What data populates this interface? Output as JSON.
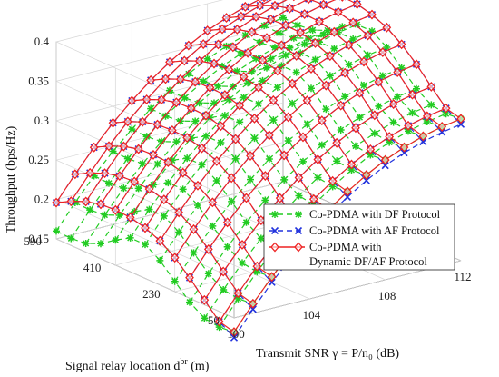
{
  "chart_data": {
    "type": "surface-3d",
    "title": "",
    "xlabel": "Transmit SNR γ = P/n₀ (dB)",
    "ylabel": "Signal relay location d^{br} (m)",
    "zlabel": "Throughput (bps/Hz)",
    "xticks": [
      "100",
      "104",
      "108",
      "112"
    ],
    "yticks": [
      "50",
      "230",
      "410",
      "590"
    ],
    "zticks": [
      "0.15",
      "0.2",
      "0.25",
      "0.3",
      "0.35",
      "0.4"
    ],
    "xlim": [
      100,
      112
    ],
    "ylim": [
      50,
      590
    ],
    "zlim": [
      0.15,
      0.4
    ],
    "grid": true,
    "legend_position": "inside-bottom-right",
    "x": [
      100,
      101,
      102,
      103,
      104,
      105,
      106,
      107,
      108,
      109,
      110,
      111,
      112
    ],
    "y": [
      590,
      545,
      500,
      455,
      410,
      365,
      320,
      275,
      230,
      185,
      140,
      95,
      50
    ],
    "series": [
      {
        "name": "Co-PDMA with DF Protocol",
        "color": "#22cc22",
        "line": "dashed",
        "marker": "asterisk",
        "values": [
          [
            0.16,
            0.19,
            0.218,
            0.243,
            0.265,
            0.285,
            0.302,
            0.317,
            0.33,
            0.34,
            0.348,
            0.354,
            0.358
          ],
          [
            0.159,
            0.189,
            0.217,
            0.242,
            0.264,
            0.284,
            0.301,
            0.316,
            0.329,
            0.339,
            0.347,
            0.353,
            0.357
          ],
          [
            0.161,
            0.191,
            0.219,
            0.244,
            0.266,
            0.286,
            0.303,
            0.318,
            0.331,
            0.341,
            0.349,
            0.355,
            0.359
          ],
          [
            0.169,
            0.199,
            0.227,
            0.252,
            0.274,
            0.294,
            0.311,
            0.326,
            0.339,
            0.349,
            0.357,
            0.363,
            0.367
          ],
          [
            0.182,
            0.212,
            0.24,
            0.265,
            0.287,
            0.307,
            0.324,
            0.339,
            0.352,
            0.362,
            0.37,
            0.376,
            0.38
          ],
          [
            0.193,
            0.223,
            0.251,
            0.276,
            0.298,
            0.318,
            0.335,
            0.35,
            0.363,
            0.373,
            0.381,
            0.387,
            0.391
          ],
          [
            0.193,
            0.223,
            0.251,
            0.276,
            0.298,
            0.318,
            0.335,
            0.35,
            0.363,
            0.373,
            0.381,
            0.387,
            0.391
          ],
          [
            0.181,
            0.211,
            0.239,
            0.264,
            0.286,
            0.306,
            0.323,
            0.338,
            0.351,
            0.361,
            0.369,
            0.375,
            0.379
          ],
          [
            0.163,
            0.193,
            0.221,
            0.246,
            0.268,
            0.288,
            0.305,
            0.32,
            0.333,
            0.343,
            0.351,
            0.357,
            0.361
          ],
          [
            0.145,
            0.175,
            0.203,
            0.228,
            0.25,
            0.27,
            0.287,
            0.302,
            0.315,
            0.325,
            0.333,
            0.339,
            0.343
          ],
          [
            0.133,
            0.163,
            0.191,
            0.216,
            0.238,
            0.258,
            0.275,
            0.29,
            0.303,
            0.313,
            0.321,
            0.327,
            0.331
          ],
          [
            0.13,
            0.16,
            0.188,
            0.213,
            0.235,
            0.255,
            0.272,
            0.287,
            0.3,
            0.31,
            0.318,
            0.324,
            0.328
          ],
          [
            0.132,
            0.162,
            0.19,
            0.215,
            0.237,
            0.257,
            0.274,
            0.289,
            0.302,
            0.312,
            0.32,
            0.326,
            0.33
          ]
        ]
      },
      {
        "name": "Co-PDMA with AF Protocol",
        "color": "#2233dd",
        "line": "dashed",
        "marker": "x",
        "values": [
          [
            0.196,
            0.226,
            0.254,
            0.279,
            0.301,
            0.321,
            0.338,
            0.353,
            0.366,
            0.376,
            0.384,
            0.39,
            0.394
          ],
          [
            0.206,
            0.236,
            0.264,
            0.289,
            0.311,
            0.331,
            0.348,
            0.363,
            0.376,
            0.386,
            0.394,
            0.4,
            0.404
          ],
          [
            0.214,
            0.244,
            0.272,
            0.297,
            0.319,
            0.339,
            0.356,
            0.371,
            0.384,
            0.394,
            0.402,
            0.408,
            0.412
          ],
          [
            0.219,
            0.249,
            0.277,
            0.302,
            0.324,
            0.344,
            0.361,
            0.376,
            0.389,
            0.399,
            0.407,
            0.413,
            0.417
          ],
          [
            0.22,
            0.25,
            0.278,
            0.303,
            0.325,
            0.345,
            0.362,
            0.377,
            0.39,
            0.4,
            0.408,
            0.414,
            0.418
          ],
          [
            0.219,
            0.249,
            0.277,
            0.302,
            0.324,
            0.344,
            0.361,
            0.376,
            0.389,
            0.399,
            0.407,
            0.413,
            0.417
          ],
          [
            0.214,
            0.244,
            0.272,
            0.297,
            0.319,
            0.339,
            0.356,
            0.371,
            0.384,
            0.394,
            0.402,
            0.408,
            0.412
          ],
          [
            0.206,
            0.236,
            0.264,
            0.289,
            0.311,
            0.331,
            0.348,
            0.363,
            0.376,
            0.386,
            0.394,
            0.4,
            0.404
          ],
          [
            0.193,
            0.223,
            0.251,
            0.276,
            0.298,
            0.318,
            0.335,
            0.35,
            0.363,
            0.373,
            0.381,
            0.387,
            0.391
          ],
          [
            0.176,
            0.206,
            0.234,
            0.259,
            0.281,
            0.301,
            0.318,
            0.333,
            0.346,
            0.356,
            0.364,
            0.37,
            0.374
          ],
          [
            0.156,
            0.186,
            0.214,
            0.239,
            0.261,
            0.281,
            0.298,
            0.313,
            0.326,
            0.336,
            0.344,
            0.35,
            0.354
          ],
          [
            0.137,
            0.167,
            0.195,
            0.22,
            0.242,
            0.262,
            0.279,
            0.294,
            0.307,
            0.317,
            0.325,
            0.331,
            0.335
          ],
          [
            0.125,
            0.155,
            0.183,
            0.208,
            0.23,
            0.25,
            0.267,
            0.282,
            0.295,
            0.305,
            0.313,
            0.319,
            0.323
          ]
        ]
      },
      {
        "name": "Co-PDMA with Dynamic DF/AF Protocol",
        "name_lines": [
          "Co-PDMA with",
          "Dynamic DF/AF Protocol"
        ],
        "color": "#ee2222",
        "line": "solid",
        "marker": "diamond",
        "values": [
          [
            0.196,
            0.226,
            0.254,
            0.279,
            0.301,
            0.321,
            0.338,
            0.353,
            0.366,
            0.376,
            0.384,
            0.39,
            0.394
          ],
          [
            0.206,
            0.236,
            0.264,
            0.289,
            0.311,
            0.331,
            0.348,
            0.363,
            0.376,
            0.386,
            0.394,
            0.4,
            0.404
          ],
          [
            0.214,
            0.244,
            0.272,
            0.297,
            0.319,
            0.339,
            0.356,
            0.371,
            0.384,
            0.394,
            0.402,
            0.408,
            0.412
          ],
          [
            0.219,
            0.249,
            0.277,
            0.302,
            0.324,
            0.344,
            0.361,
            0.376,
            0.389,
            0.399,
            0.407,
            0.413,
            0.417
          ],
          [
            0.22,
            0.25,
            0.278,
            0.303,
            0.325,
            0.345,
            0.362,
            0.377,
            0.39,
            0.4,
            0.408,
            0.414,
            0.418
          ],
          [
            0.219,
            0.249,
            0.277,
            0.302,
            0.324,
            0.344,
            0.361,
            0.376,
            0.389,
            0.399,
            0.407,
            0.413,
            0.417
          ],
          [
            0.214,
            0.244,
            0.272,
            0.297,
            0.319,
            0.339,
            0.356,
            0.371,
            0.384,
            0.394,
            0.402,
            0.408,
            0.412
          ],
          [
            0.206,
            0.236,
            0.264,
            0.289,
            0.311,
            0.331,
            0.348,
            0.363,
            0.376,
            0.386,
            0.394,
            0.4,
            0.404
          ],
          [
            0.193,
            0.223,
            0.251,
            0.276,
            0.298,
            0.318,
            0.335,
            0.35,
            0.363,
            0.373,
            0.381,
            0.387,
            0.391
          ],
          [
            0.176,
            0.206,
            0.234,
            0.259,
            0.281,
            0.301,
            0.318,
            0.333,
            0.346,
            0.356,
            0.364,
            0.37,
            0.374
          ],
          [
            0.156,
            0.186,
            0.214,
            0.239,
            0.261,
            0.281,
            0.298,
            0.313,
            0.326,
            0.336,
            0.344,
            0.35,
            0.354
          ],
          [
            0.137,
            0.167,
            0.195,
            0.22,
            0.242,
            0.262,
            0.279,
            0.294,
            0.307,
            0.317,
            0.325,
            0.331,
            0.335
          ],
          [
            0.132,
            0.162,
            0.19,
            0.215,
            0.237,
            0.257,
            0.274,
            0.289,
            0.302,
            0.312,
            0.32,
            0.326,
            0.33
          ]
        ]
      }
    ]
  }
}
